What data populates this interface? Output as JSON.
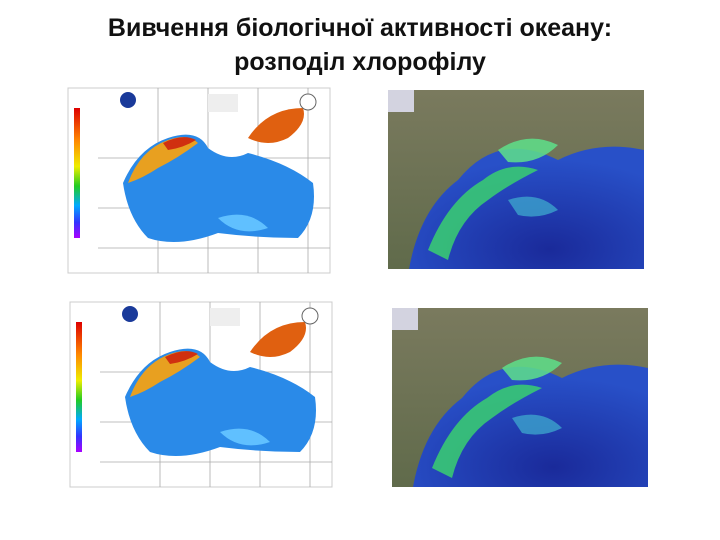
{
  "title": {
    "line1": "Вивчення біологічної активності океану:",
    "line2": "розподіл хлорофілу"
  }
}
